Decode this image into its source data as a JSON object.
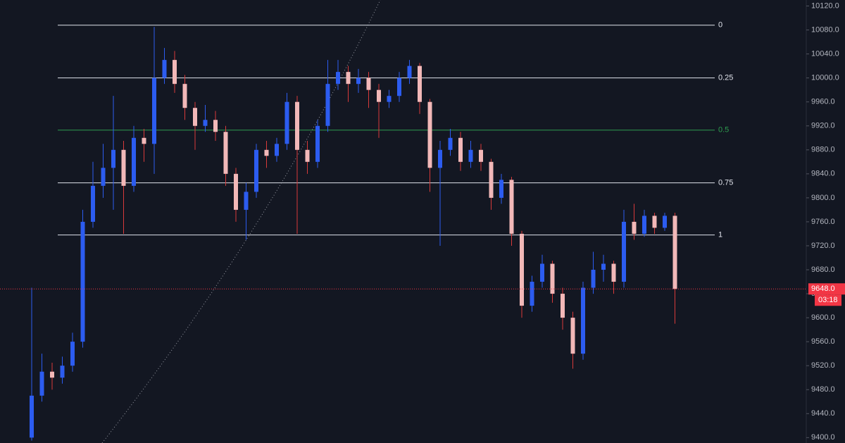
{
  "chart_data": {
    "type": "candlestick",
    "categories": [
      null,
      null,
      null,
      null,
      null,
      null,
      null,
      null,
      null,
      null,
      null,
      null,
      null,
      null,
      null,
      null,
      null,
      null,
      null,
      null,
      null,
      null,
      null,
      null,
      null,
      null,
      null,
      null,
      null,
      null,
      null,
      null,
      null,
      null,
      null,
      null,
      null,
      null,
      null,
      null,
      null,
      null,
      null,
      null,
      null,
      null,
      null,
      null,
      null,
      null,
      null,
      null,
      null,
      null,
      null,
      null,
      null,
      null,
      null,
      null,
      null,
      null,
      null,
      null
    ],
    "open": [
      9400,
      9470,
      9510,
      9500,
      9520,
      9560,
      9760,
      9820,
      9850,
      9880,
      9820,
      9900,
      9890,
      10000,
      10030,
      9990,
      9950,
      9920,
      9930,
      9910,
      9840,
      9780,
      9810,
      9880,
      9870,
      9890,
      9960,
      9880,
      9860,
      9920,
      9990,
      10010,
      9990,
      10000,
      9980,
      9960,
      9970,
      10000,
      10020,
      9960,
      9850,
      9880,
      9900,
      9860,
      9880,
      9860,
      9800,
      9830,
      9740,
      9620,
      9660,
      9690,
      9640,
      9600,
      9540,
      9650,
      9680,
      9690,
      9660,
      9760,
      9740,
      9770,
      9750,
      9770
    ],
    "high": [
      9650,
      9540,
      9525,
      9535,
      9575,
      9780,
      9860,
      9890,
      9970,
      9895,
      9920,
      9915,
      10085,
      10050,
      10045,
      10005,
      9960,
      9955,
      9945,
      9920,
      9850,
      9825,
      9890,
      9895,
      9900,
      9975,
      9970,
      9895,
      9930,
      10030,
      10030,
      10020,
      10015,
      10010,
      9990,
      9980,
      10010,
      10030,
      10025,
      9965,
      9895,
      9915,
      9910,
      9895,
      9890,
      9865,
      9840,
      9835,
      9745,
      9670,
      9705,
      9695,
      9650,
      9610,
      9660,
      9710,
      9705,
      9695,
      9780,
      9790,
      9780,
      9775,
      9775,
      9775
    ],
    "low": [
      9395,
      9460,
      9480,
      9490,
      9510,
      9550,
      9750,
      9800,
      9780,
      9740,
      9810,
      9860,
      9840,
      9990,
      9975,
      9930,
      9880,
      9910,
      9895,
      9820,
      9760,
      9730,
      9800,
      9850,
      9860,
      9880,
      9740,
      9840,
      9850,
      9910,
      9980,
      9960,
      9975,
      9950,
      9900,
      9950,
      9960,
      9990,
      9940,
      9810,
      9720,
      9870,
      9845,
      9850,
      9845,
      9780,
      9790,
      9720,
      9600,
      9610,
      9650,
      9625,
      9580,
      9515,
      9530,
      9640,
      9660,
      9640,
      9650,
      9730,
      9735,
      9740,
      9745,
      9590
    ],
    "close": [
      9470,
      9510,
      9500,
      9520,
      9560,
      9760,
      9820,
      9850,
      9880,
      9820,
      9900,
      9890,
      10000,
      10030,
      9990,
      9950,
      9920,
      9930,
      9910,
      9840,
      9780,
      9810,
      9880,
      9870,
      9890,
      9960,
      9880,
      9860,
      9920,
      9990,
      10010,
      9990,
      10000,
      9980,
      9960,
      9970,
      10000,
      10020,
      9960,
      9850,
      9880,
      9900,
      9860,
      9880,
      9860,
      9800,
      9830,
      9740,
      9620,
      9660,
      9690,
      9640,
      9600,
      9540,
      9650,
      9680,
      9690,
      9660,
      9760,
      9740,
      9770,
      9750,
      9770,
      9648
    ],
    "up_color": "#2c5cf0",
    "down_color": "#f2b8b8",
    "wick_down_color": "#d83a3a",
    "ylim": [
      9391,
      10130
    ],
    "yticks": [
      {
        "value": 9400,
        "label": "9400.0"
      },
      {
        "value": 9440,
        "label": "9440.0"
      },
      {
        "value": 9480,
        "label": "9480.0"
      },
      {
        "value": 9520,
        "label": "9520.0"
      },
      {
        "value": 9560,
        "label": "9560.0"
      },
      {
        "value": 9600,
        "label": "9600.0"
      },
      {
        "value": 9640,
        "label": "9640.0"
      },
      {
        "value": 9680,
        "label": "9680.0"
      },
      {
        "value": 9720,
        "label": "9720.0"
      },
      {
        "value": 9760,
        "label": "9760.0"
      },
      {
        "value": 9800,
        "label": "9800.0"
      },
      {
        "value": 9840,
        "label": "9840.0"
      },
      {
        "value": 9880,
        "label": "9880.0"
      },
      {
        "value": 9920,
        "label": "9920.0"
      },
      {
        "value": 9960,
        "label": "9960.0"
      },
      {
        "value": 10000,
        "label": "10000.0"
      },
      {
        "value": 10040,
        "label": "10040.0"
      },
      {
        "value": 10080,
        "label": "10080.0"
      },
      {
        "value": 10120,
        "label": "10120.0"
      }
    ],
    "fib": {
      "ratios": [
        0,
        0.25,
        0.5,
        0.75,
        1
      ],
      "prices": [
        10088,
        10000,
        9913,
        9825,
        9738
      ],
      "colors": [
        "#e0e3eb",
        "#e0e3eb",
        "#2e9e4f",
        "#e0e3eb",
        "#e0e3eb"
      ]
    },
    "current_price": {
      "value": 9648,
      "label": "9648.0",
      "color": "#f23645"
    },
    "countdown": "03:18"
  }
}
